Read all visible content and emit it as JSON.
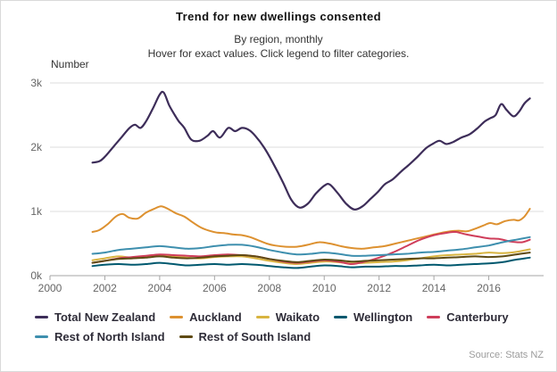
{
  "header": {
    "title": "Trend for new dwellings consented",
    "subtitle1": "By region, monthly",
    "subtitle2": "Hover for exact values. Click legend to filter categories."
  },
  "source": "Source: Stats NZ",
  "chart_data": {
    "type": "line",
    "title": "Trend for new dwellings consented",
    "subtitle": "By region, monthly",
    "ylabel": "Number",
    "xlabel": "",
    "grid": true,
    "legend_position": "bottom",
    "xlim": [
      2000,
      2018
    ],
    "ylim_thousands": [
      0,
      3
    ],
    "x_ticks": [
      {
        "label": "2000",
        "value": 2000
      },
      {
        "label": "2002",
        "value": 2002
      },
      {
        "label": "2004",
        "value": 2004
      },
      {
        "label": "2006",
        "value": 2006
      },
      {
        "label": "2008",
        "value": 2008
      },
      {
        "label": "2010",
        "value": 2010
      },
      {
        "label": "2012",
        "value": 2012
      },
      {
        "label": "2014",
        "value": 2014
      },
      {
        "label": "2016",
        "value": 2016
      }
    ],
    "y_ticks": [
      {
        "label": "3k",
        "value": 3
      },
      {
        "label": "2k",
        "value": 2
      },
      {
        "label": "1k",
        "value": 1
      },
      {
        "label": "0k",
        "value": 0
      }
    ],
    "units": "dwellings per month (values in thousands)",
    "series": [
      {
        "name": "Total New Zealand",
        "color": "#3d2d59",
        "width": 2.2,
        "points": [
          [
            2001.55,
            1.76
          ],
          [
            2001.8,
            1.78
          ],
          [
            2002.0,
            1.85
          ],
          [
            2002.3,
            2.0
          ],
          [
            2002.6,
            2.15
          ],
          [
            2002.9,
            2.3
          ],
          [
            2003.1,
            2.35
          ],
          [
            2003.3,
            2.3
          ],
          [
            2003.5,
            2.4
          ],
          [
            2003.75,
            2.6
          ],
          [
            2004.0,
            2.82
          ],
          [
            2004.15,
            2.85
          ],
          [
            2004.35,
            2.65
          ],
          [
            2004.55,
            2.5
          ],
          [
            2004.7,
            2.4
          ],
          [
            2004.9,
            2.3
          ],
          [
            2005.15,
            2.12
          ],
          [
            2005.45,
            2.1
          ],
          [
            2005.75,
            2.18
          ],
          [
            2005.95,
            2.25
          ],
          [
            2006.2,
            2.15
          ],
          [
            2006.5,
            2.3
          ],
          [
            2006.75,
            2.25
          ],
          [
            2007.0,
            2.3
          ],
          [
            2007.25,
            2.27
          ],
          [
            2007.5,
            2.17
          ],
          [
            2007.8,
            2.0
          ],
          [
            2008.1,
            1.78
          ],
          [
            2008.5,
            1.45
          ],
          [
            2008.8,
            1.18
          ],
          [
            2009.1,
            1.06
          ],
          [
            2009.4,
            1.12
          ],
          [
            2009.7,
            1.28
          ],
          [
            2010.0,
            1.4
          ],
          [
            2010.2,
            1.42
          ],
          [
            2010.5,
            1.28
          ],
          [
            2010.8,
            1.12
          ],
          [
            2011.1,
            1.03
          ],
          [
            2011.4,
            1.08
          ],
          [
            2011.7,
            1.2
          ],
          [
            2011.95,
            1.3
          ],
          [
            2012.2,
            1.42
          ],
          [
            2012.5,
            1.5
          ],
          [
            2012.8,
            1.62
          ],
          [
            2013.1,
            1.73
          ],
          [
            2013.4,
            1.85
          ],
          [
            2013.7,
            1.98
          ],
          [
            2013.95,
            2.05
          ],
          [
            2014.2,
            2.1
          ],
          [
            2014.45,
            2.05
          ],
          [
            2014.7,
            2.08
          ],
          [
            2015.0,
            2.15
          ],
          [
            2015.3,
            2.2
          ],
          [
            2015.6,
            2.3
          ],
          [
            2015.85,
            2.4
          ],
          [
            2016.05,
            2.45
          ],
          [
            2016.25,
            2.5
          ],
          [
            2016.45,
            2.67
          ],
          [
            2016.65,
            2.58
          ],
          [
            2016.9,
            2.48
          ],
          [
            2017.1,
            2.55
          ],
          [
            2017.3,
            2.68
          ],
          [
            2017.5,
            2.76
          ]
        ]
      },
      {
        "name": "Auckland",
        "color": "#dd9130",
        "width": 2,
        "points": [
          [
            2001.55,
            0.68
          ],
          [
            2001.8,
            0.71
          ],
          [
            2002.1,
            0.8
          ],
          [
            2002.4,
            0.92
          ],
          [
            2002.65,
            0.96
          ],
          [
            2002.9,
            0.9
          ],
          [
            2003.2,
            0.89
          ],
          [
            2003.5,
            0.98
          ],
          [
            2003.8,
            1.04
          ],
          [
            2004.05,
            1.08
          ],
          [
            2004.3,
            1.04
          ],
          [
            2004.6,
            0.97
          ],
          [
            2004.9,
            0.92
          ],
          [
            2005.2,
            0.83
          ],
          [
            2005.5,
            0.75
          ],
          [
            2005.8,
            0.7
          ],
          [
            2006.1,
            0.67
          ],
          [
            2006.4,
            0.66
          ],
          [
            2006.7,
            0.64
          ],
          [
            2007.0,
            0.63
          ],
          [
            2007.3,
            0.6
          ],
          [
            2007.6,
            0.55
          ],
          [
            2007.9,
            0.5
          ],
          [
            2008.2,
            0.47
          ],
          [
            2008.6,
            0.45
          ],
          [
            2009.0,
            0.45
          ],
          [
            2009.4,
            0.48
          ],
          [
            2009.8,
            0.52
          ],
          [
            2010.2,
            0.5
          ],
          [
            2010.6,
            0.46
          ],
          [
            2011.0,
            0.43
          ],
          [
            2011.4,
            0.42
          ],
          [
            2011.8,
            0.44
          ],
          [
            2012.2,
            0.46
          ],
          [
            2012.6,
            0.5
          ],
          [
            2013.0,
            0.54
          ],
          [
            2013.4,
            0.58
          ],
          [
            2013.8,
            0.62
          ],
          [
            2014.2,
            0.66
          ],
          [
            2014.6,
            0.69
          ],
          [
            2014.9,
            0.7
          ],
          [
            2015.2,
            0.69
          ],
          [
            2015.5,
            0.73
          ],
          [
            2015.8,
            0.78
          ],
          [
            2016.05,
            0.82
          ],
          [
            2016.3,
            0.8
          ],
          [
            2016.6,
            0.85
          ],
          [
            2016.9,
            0.87
          ],
          [
            2017.1,
            0.86
          ],
          [
            2017.3,
            0.92
          ],
          [
            2017.5,
            1.04
          ]
        ]
      },
      {
        "name": "Waikato",
        "color": "#d8b440",
        "width": 2,
        "points": [
          [
            2001.55,
            0.24
          ],
          [
            2002.0,
            0.27
          ],
          [
            2002.5,
            0.3
          ],
          [
            2003.0,
            0.28
          ],
          [
            2003.5,
            0.3
          ],
          [
            2004.0,
            0.32
          ],
          [
            2004.5,
            0.3
          ],
          [
            2005.0,
            0.28
          ],
          [
            2005.5,
            0.27
          ],
          [
            2006.0,
            0.29
          ],
          [
            2006.5,
            0.3
          ],
          [
            2007.0,
            0.3
          ],
          [
            2007.5,
            0.27
          ],
          [
            2008.0,
            0.23
          ],
          [
            2008.5,
            0.2
          ],
          [
            2009.0,
            0.18
          ],
          [
            2009.5,
            0.2
          ],
          [
            2010.0,
            0.22
          ],
          [
            2010.5,
            0.21
          ],
          [
            2011.0,
            0.19
          ],
          [
            2011.5,
            0.2
          ],
          [
            2012.0,
            0.21
          ],
          [
            2012.5,
            0.22
          ],
          [
            2013.0,
            0.24
          ],
          [
            2013.5,
            0.27
          ],
          [
            2014.0,
            0.3
          ],
          [
            2014.5,
            0.32
          ],
          [
            2015.0,
            0.33
          ],
          [
            2015.5,
            0.34
          ],
          [
            2016.0,
            0.36
          ],
          [
            2016.5,
            0.35
          ],
          [
            2017.0,
            0.37
          ],
          [
            2017.5,
            0.41
          ]
        ]
      },
      {
        "name": "Wellington",
        "color": "#00586e",
        "width": 2,
        "points": [
          [
            2001.55,
            0.15
          ],
          [
            2002.0,
            0.17
          ],
          [
            2002.5,
            0.18
          ],
          [
            2003.0,
            0.17
          ],
          [
            2003.5,
            0.18
          ],
          [
            2004.0,
            0.2
          ],
          [
            2004.5,
            0.18
          ],
          [
            2005.0,
            0.16
          ],
          [
            2005.5,
            0.17
          ],
          [
            2006.0,
            0.18
          ],
          [
            2006.5,
            0.17
          ],
          [
            2007.0,
            0.18
          ],
          [
            2007.5,
            0.17
          ],
          [
            2008.0,
            0.15
          ],
          [
            2008.5,
            0.13
          ],
          [
            2009.0,
            0.12
          ],
          [
            2009.5,
            0.14
          ],
          [
            2010.0,
            0.16
          ],
          [
            2010.5,
            0.15
          ],
          [
            2011.0,
            0.13
          ],
          [
            2011.5,
            0.14
          ],
          [
            2012.0,
            0.14
          ],
          [
            2012.5,
            0.15
          ],
          [
            2013.0,
            0.15
          ],
          [
            2013.5,
            0.16
          ],
          [
            2014.0,
            0.17
          ],
          [
            2014.5,
            0.16
          ],
          [
            2015.0,
            0.17
          ],
          [
            2015.5,
            0.18
          ],
          [
            2016.0,
            0.19
          ],
          [
            2016.5,
            0.21
          ],
          [
            2017.0,
            0.25
          ],
          [
            2017.5,
            0.28
          ]
        ]
      },
      {
        "name": "Canterbury",
        "color": "#cf3d5a",
        "width": 2,
        "points": [
          [
            2001.55,
            0.2
          ],
          [
            2002.0,
            0.23
          ],
          [
            2002.5,
            0.27
          ],
          [
            2003.0,
            0.29
          ],
          [
            2003.5,
            0.31
          ],
          [
            2004.0,
            0.33
          ],
          [
            2004.5,
            0.32
          ],
          [
            2005.0,
            0.31
          ],
          [
            2005.5,
            0.3
          ],
          [
            2006.0,
            0.32
          ],
          [
            2006.5,
            0.33
          ],
          [
            2007.0,
            0.32
          ],
          [
            2007.5,
            0.3
          ],
          [
            2008.0,
            0.26
          ],
          [
            2008.5,
            0.22
          ],
          [
            2009.0,
            0.2
          ],
          [
            2009.5,
            0.22
          ],
          [
            2010.0,
            0.24
          ],
          [
            2010.5,
            0.22
          ],
          [
            2011.0,
            0.18
          ],
          [
            2011.5,
            0.22
          ],
          [
            2012.0,
            0.28
          ],
          [
            2012.5,
            0.36
          ],
          [
            2013.0,
            0.46
          ],
          [
            2013.5,
            0.56
          ],
          [
            2014.0,
            0.63
          ],
          [
            2014.5,
            0.67
          ],
          [
            2014.8,
            0.68
          ],
          [
            2015.2,
            0.64
          ],
          [
            2015.6,
            0.61
          ],
          [
            2016.0,
            0.58
          ],
          [
            2016.4,
            0.57
          ],
          [
            2016.8,
            0.53
          ],
          [
            2017.2,
            0.52
          ],
          [
            2017.5,
            0.56
          ]
        ]
      },
      {
        "name": "Rest of North Island",
        "color": "#3e8fae",
        "width": 2,
        "points": [
          [
            2001.55,
            0.34
          ],
          [
            2002.0,
            0.36
          ],
          [
            2002.5,
            0.4
          ],
          [
            2003.0,
            0.42
          ],
          [
            2003.5,
            0.44
          ],
          [
            2004.0,
            0.46
          ],
          [
            2004.5,
            0.44
          ],
          [
            2005.0,
            0.42
          ],
          [
            2005.5,
            0.43
          ],
          [
            2006.0,
            0.46
          ],
          [
            2006.5,
            0.48
          ],
          [
            2007.0,
            0.48
          ],
          [
            2007.5,
            0.45
          ],
          [
            2008.0,
            0.4
          ],
          [
            2008.5,
            0.36
          ],
          [
            2009.0,
            0.33
          ],
          [
            2009.5,
            0.34
          ],
          [
            2010.0,
            0.36
          ],
          [
            2010.5,
            0.34
          ],
          [
            2011.0,
            0.31
          ],
          [
            2011.5,
            0.31
          ],
          [
            2012.0,
            0.32
          ],
          [
            2012.5,
            0.33
          ],
          [
            2013.0,
            0.34
          ],
          [
            2013.5,
            0.36
          ],
          [
            2014.0,
            0.37
          ],
          [
            2014.5,
            0.39
          ],
          [
            2015.0,
            0.41
          ],
          [
            2015.5,
            0.44
          ],
          [
            2016.0,
            0.47
          ],
          [
            2016.5,
            0.52
          ],
          [
            2017.0,
            0.56
          ],
          [
            2017.5,
            0.6
          ]
        ]
      },
      {
        "name": "Rest of South Island",
        "color": "#5e4a13",
        "width": 2,
        "points": [
          [
            2001.55,
            0.2
          ],
          [
            2002.0,
            0.23
          ],
          [
            2002.5,
            0.26
          ],
          [
            2003.0,
            0.27
          ],
          [
            2003.5,
            0.28
          ],
          [
            2004.0,
            0.3
          ],
          [
            2004.5,
            0.28
          ],
          [
            2005.0,
            0.27
          ],
          [
            2005.5,
            0.28
          ],
          [
            2006.0,
            0.3
          ],
          [
            2006.5,
            0.31
          ],
          [
            2007.0,
            0.32
          ],
          [
            2007.5,
            0.3
          ],
          [
            2008.0,
            0.26
          ],
          [
            2008.5,
            0.23
          ],
          [
            2009.0,
            0.21
          ],
          [
            2009.5,
            0.23
          ],
          [
            2010.0,
            0.25
          ],
          [
            2010.5,
            0.24
          ],
          [
            2011.0,
            0.22
          ],
          [
            2011.5,
            0.23
          ],
          [
            2012.0,
            0.24
          ],
          [
            2012.5,
            0.25
          ],
          [
            2013.0,
            0.26
          ],
          [
            2013.5,
            0.27
          ],
          [
            2014.0,
            0.27
          ],
          [
            2014.5,
            0.28
          ],
          [
            2015.0,
            0.29
          ],
          [
            2015.5,
            0.3
          ],
          [
            2016.0,
            0.29
          ],
          [
            2016.5,
            0.3
          ],
          [
            2017.0,
            0.33
          ],
          [
            2017.5,
            0.36
          ]
        ]
      }
    ],
    "colors": {
      "grid": "#dcdcdc",
      "axis": "#a6a6a6",
      "tick_label": "#666666",
      "legend_text": "#2e2c38"
    }
  }
}
